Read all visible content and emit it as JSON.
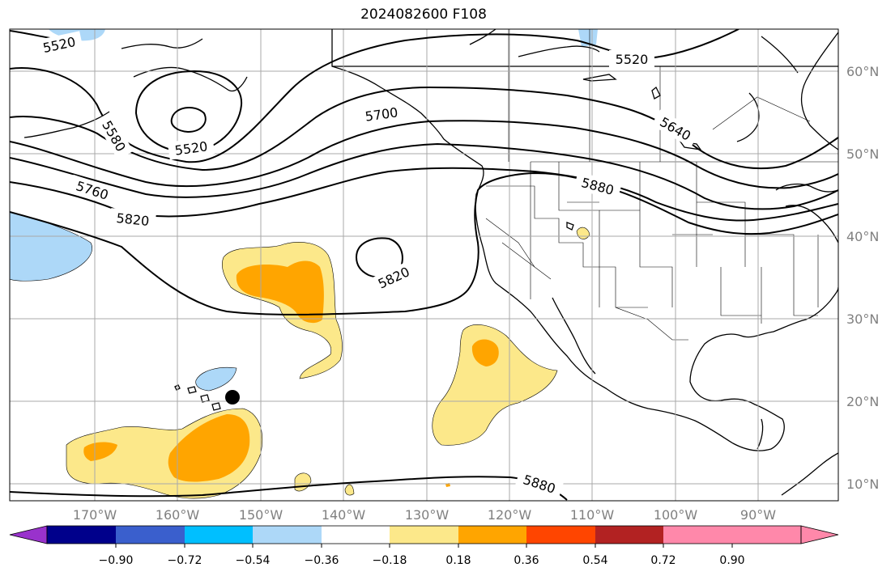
{
  "title": "2024082600 F108",
  "map": {
    "lon_labels": [
      "170°W",
      "160°W",
      "150°W",
      "140°W",
      "130°W",
      "120°W",
      "110°W",
      "100°W",
      "90°W"
    ],
    "lat_labels": [
      "60°N",
      "50°N",
      "40°N",
      "30°N",
      "20°N",
      "10°N"
    ],
    "contour_labels": [
      "5520",
      "5520",
      "5520",
      "5580",
      "5700",
      "5640",
      "5760",
      "5820",
      "5820",
      "5880",
      "5880"
    ],
    "marker": "black-dot"
  },
  "colorbar": {
    "ticks": [
      "−0.90",
      "−0.72",
      "−0.54",
      "−0.36",
      "−0.18",
      "0.18",
      "0.36",
      "0.54",
      "0.72",
      "0.90"
    ],
    "colors": [
      "#9932cc",
      "#00008b",
      "#3a5fcd",
      "#00bfff",
      "#add8f8",
      "#ffffff",
      "#fce88a",
      "#ffa500",
      "#ff4500",
      "#b22222",
      "#ff88aa",
      "#ff88aa"
    ],
    "under_color": "#9932cc",
    "over_color": "#ff88aa"
  },
  "colors": {
    "land_line": "#000000",
    "grid": "#a9a9a9",
    "positive_light": "#fce88a",
    "positive_mid": "#ffa500",
    "negative_light": "#add8f8"
  }
}
